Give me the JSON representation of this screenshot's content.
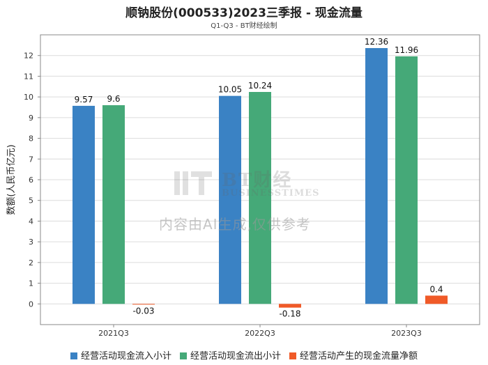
{
  "chart_data": {
    "type": "bar",
    "title": "顺钠股份(000533)2023三季报 - 现金流量",
    "subtitle": "Q1-Q3 - BT财经绘制",
    "ylabel": "数额(人民币亿元)",
    "xlabel": "",
    "categories": [
      "2021Q3",
      "2022Q3",
      "2023Q3"
    ],
    "ylim": [
      -1,
      13
    ],
    "yticks": [
      0,
      1,
      2,
      3,
      4,
      5,
      6,
      7,
      8,
      9,
      10,
      11,
      12
    ],
    "grid": true,
    "legend_position": "bottom",
    "series": [
      {
        "name": "经营活动现金流入小计",
        "color": "#3a82c4",
        "values": [
          9.57,
          10.05,
          12.36
        ],
        "labels": [
          "9.57",
          "10.05",
          "12.36"
        ]
      },
      {
        "name": "经营活动现金流出小计",
        "color": "#45a978",
        "values": [
          9.6,
          10.24,
          11.96
        ],
        "labels": [
          "9.6",
          "10.24",
          "11.96"
        ]
      },
      {
        "name": "经营活动产生的现金流量净额",
        "color": "#f05a28",
        "values": [
          -0.03,
          -0.18,
          0.4
        ],
        "labels": [
          "-0.03",
          "-0.18",
          "0.4"
        ]
      }
    ]
  },
  "watermark": {
    "brand": "BT财经",
    "brand_en": "BUSINESSTIMES",
    "notice": "内容由AI生成,仅供参考"
  }
}
